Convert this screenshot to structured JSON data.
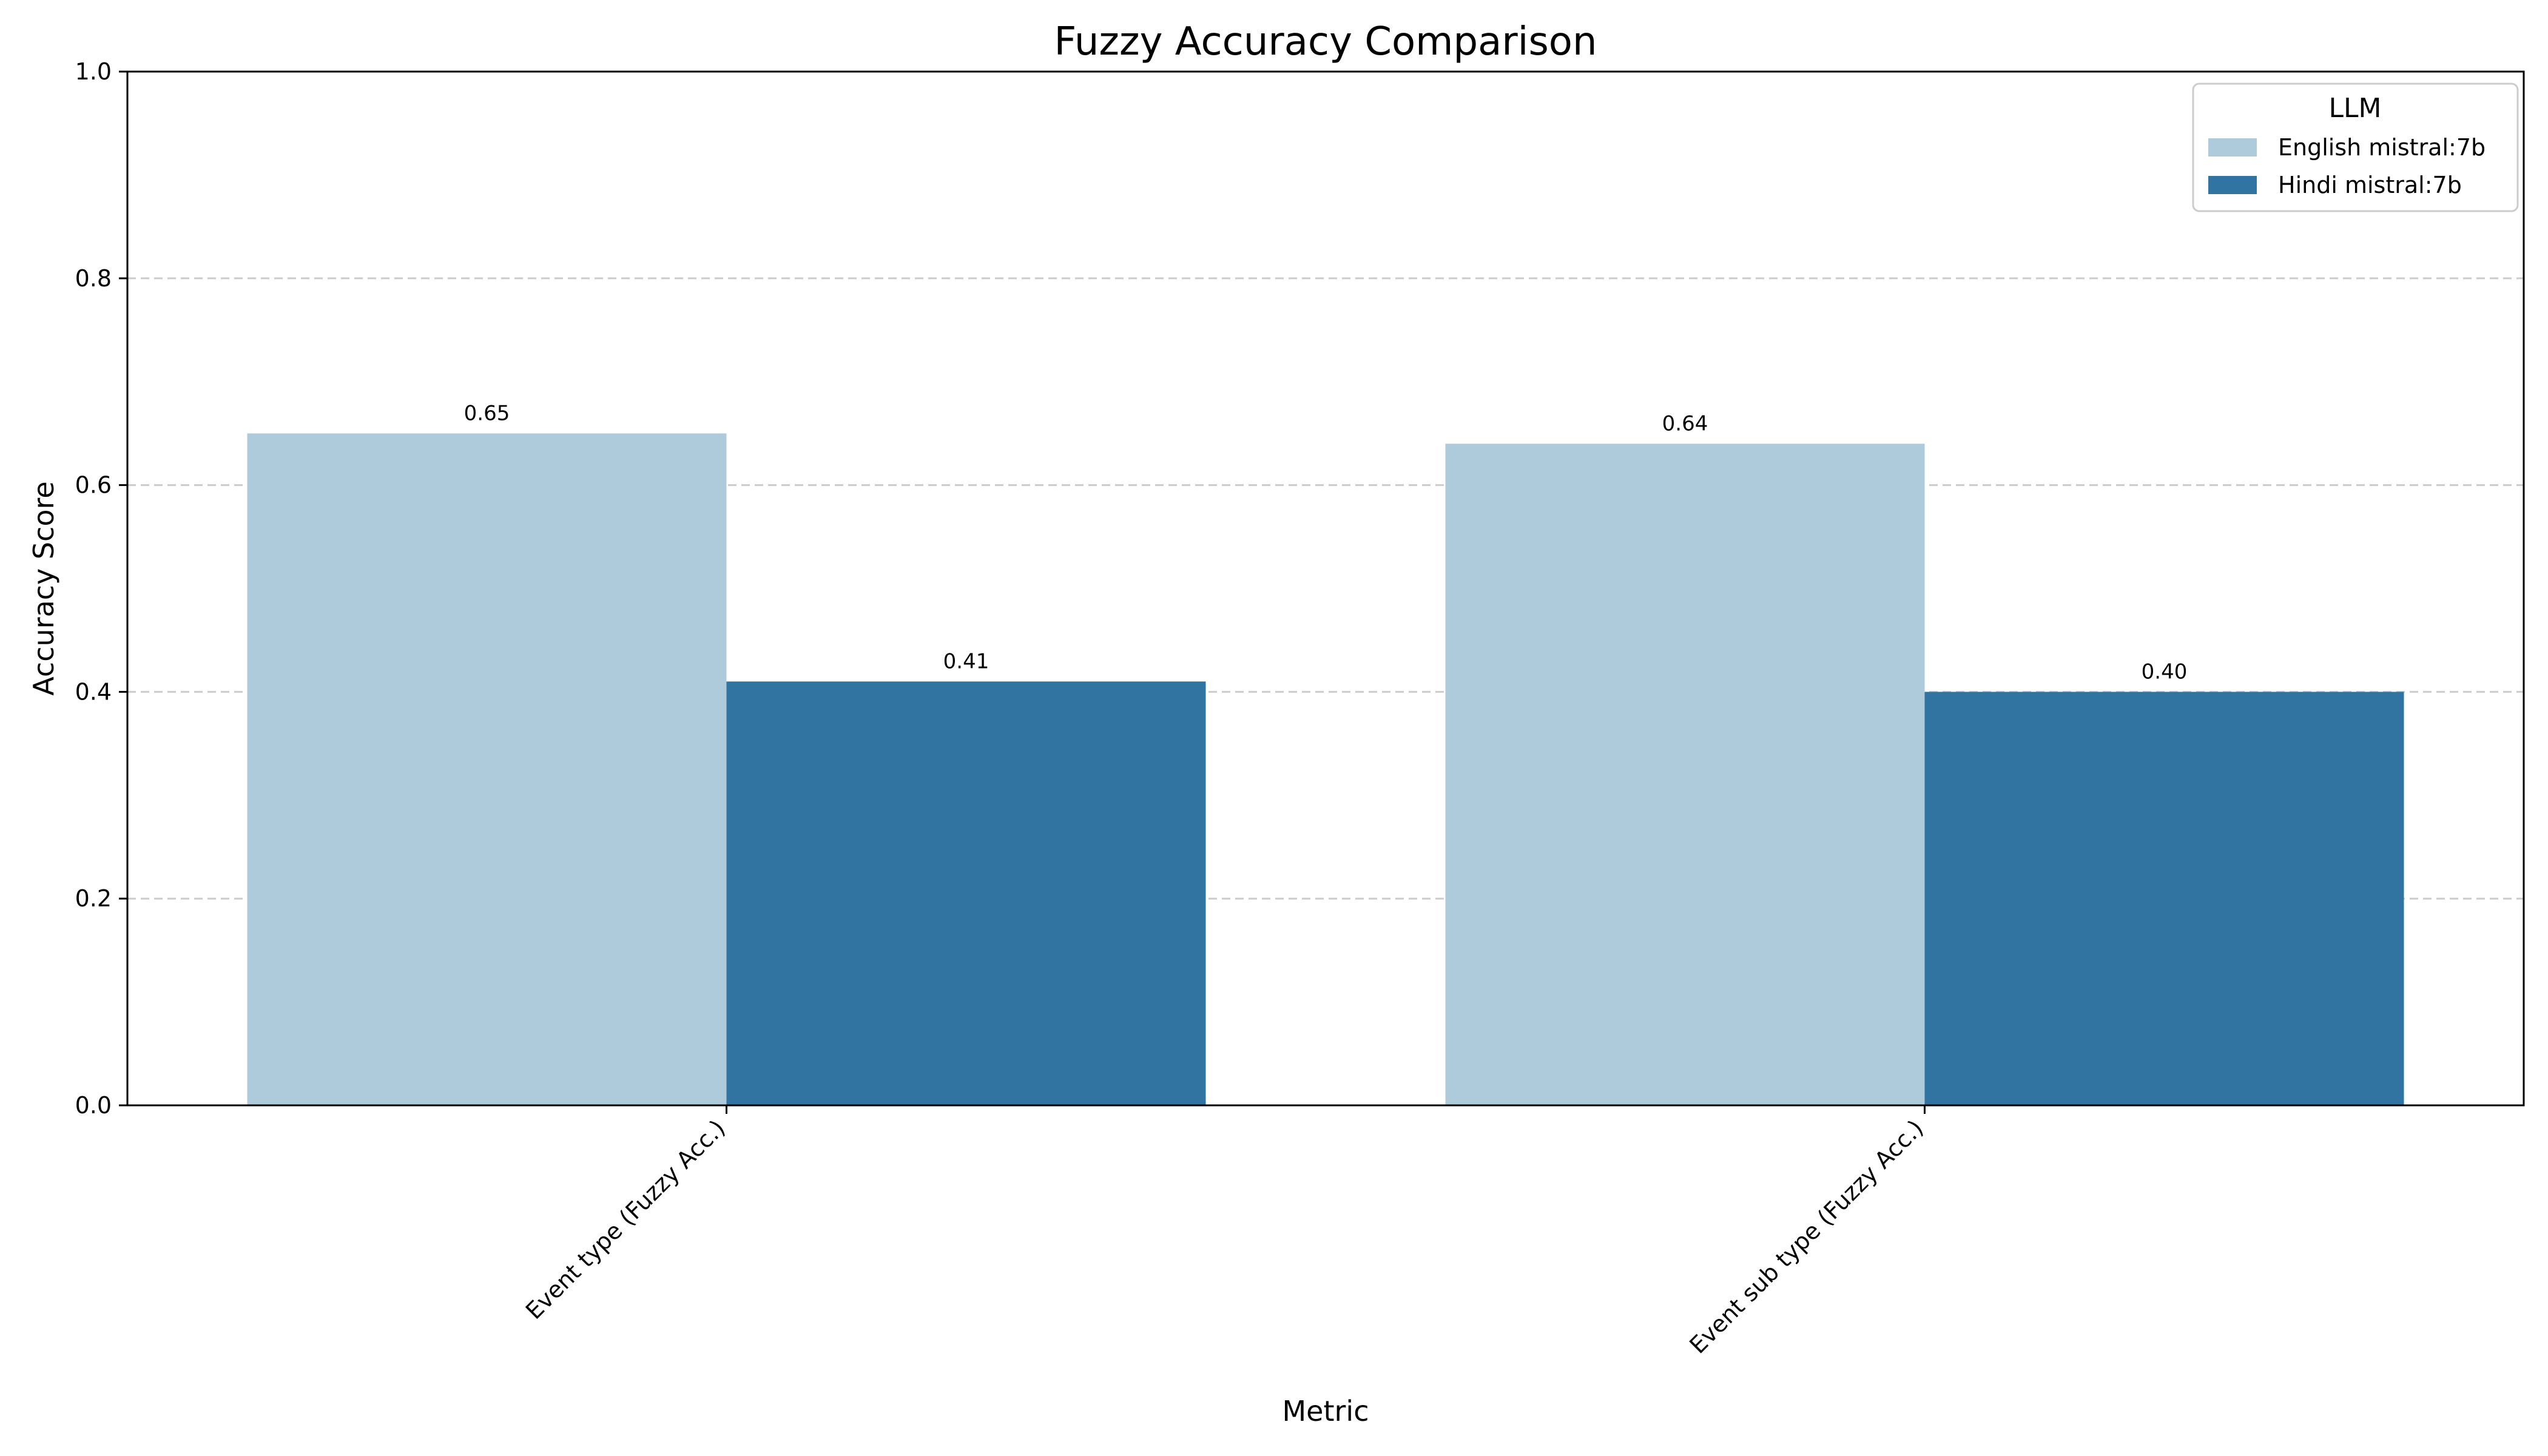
{
  "chart_data": {
    "type": "bar",
    "title": "Fuzzy Accuracy Comparison",
    "xlabel": "Metric",
    "ylabel": "Accuracy Score",
    "categories": [
      "Event type (Fuzzy Acc.)",
      "Event sub type (Fuzzy Acc.)"
    ],
    "series": [
      {
        "name": "English mistral:7b",
        "values": [
          0.65,
          0.64
        ],
        "labels": [
          "0.65",
          "0.64"
        ],
        "color": "#aecbdb"
      },
      {
        "name": "Hindi mistral:7b",
        "values": [
          0.41,
          0.4
        ],
        "labels": [
          "0.41",
          "0.40"
        ],
        "color": "#3274a1"
      }
    ],
    "ylim": [
      0,
      1.0
    ],
    "yticks": [
      0.0,
      0.2,
      0.4,
      0.6,
      0.8,
      1.0
    ],
    "ytick_labels": [
      "0.0",
      "0.2",
      "0.4",
      "0.6",
      "0.8",
      "1.0"
    ],
    "grid": true,
    "grid_axis": "y",
    "legend": {
      "title": "LLM",
      "position": "top-right"
    }
  }
}
